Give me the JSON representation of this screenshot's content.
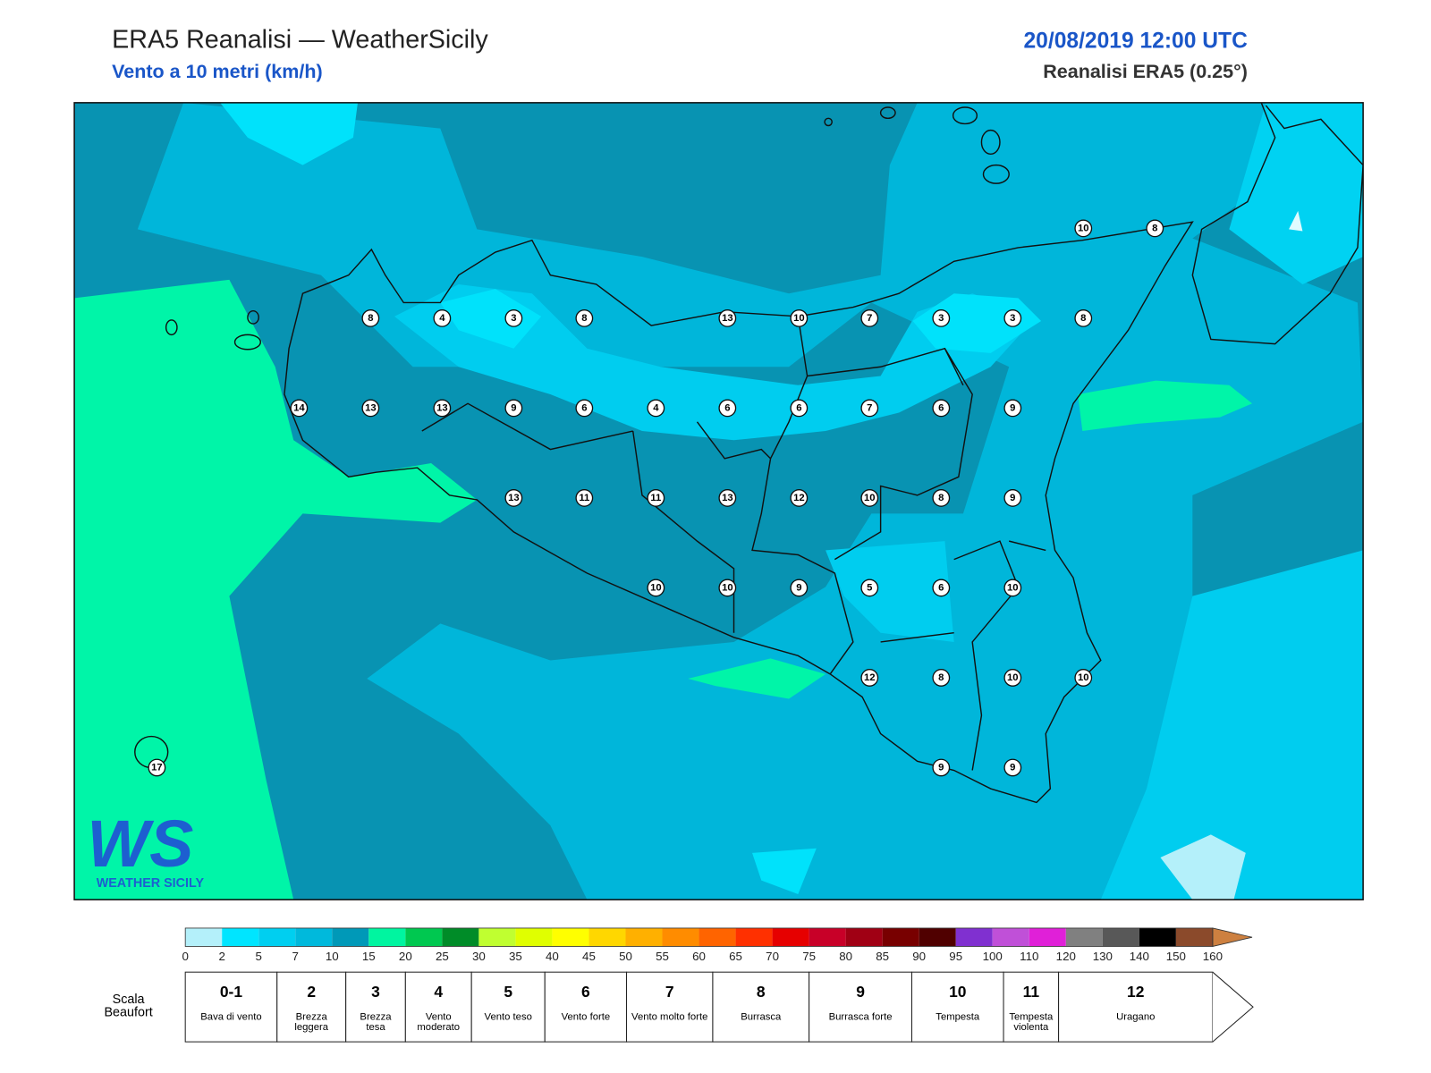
{
  "header": {
    "title": "ERA5 Reanalisi — WeatherSicily",
    "subtitle": "Vento a 10 metri (km/h)",
    "date": "20/08/2019 12:00 UTC",
    "source": "Reanalisi ERA5 (0.25°)"
  },
  "map": {
    "points": [
      10,
      8,
      8,
      4,
      3,
      8,
      13,
      10,
      7,
      3,
      3,
      8,
      14,
      13,
      13,
      9,
      6,
      4,
      6,
      6,
      7,
      6,
      9,
      13,
      11,
      11,
      13,
      12,
      10,
      8,
      9,
      10,
      10,
      9,
      5,
      6,
      10,
      12,
      8,
      10,
      10,
      9,
      9,
      17
    ]
  },
  "logo": {
    "mark": "WS",
    "name": "WEATHER SICILY"
  },
  "colorbar": {
    "ticks": [
      0,
      2,
      5,
      7,
      10,
      15,
      20,
      25,
      30,
      35,
      40,
      45,
      50,
      55,
      60,
      65,
      70,
      75,
      80,
      85,
      90,
      95,
      100,
      110,
      120,
      130,
      140,
      150,
      160
    ],
    "colors": [
      "#b4f0fa",
      "#00e5ff",
      "#00cff0",
      "#00b9dc",
      "#0099b8",
      "#00f5a0",
      "#00c850",
      "#008c28",
      "#c0ff30",
      "#e0ff00",
      "#ffff00",
      "#ffd700",
      "#ffb000",
      "#ff8c00",
      "#ff6400",
      "#ff3000",
      "#e60000",
      "#c80028",
      "#a00014",
      "#780000",
      "#500000",
      "#8030d0",
      "#c050d8",
      "#e020d8",
      "#808080",
      "#585858",
      "#000000",
      "#8b4a2b"
    ],
    "extend_color": "#cd8040"
  },
  "beaufort": {
    "label": "Scala Beaufort",
    "classes": [
      {
        "force": "0-1",
        "name": "Bava di vento"
      },
      {
        "force": "2",
        "name": "Brezza leggera"
      },
      {
        "force": "3",
        "name": "Brezza tesa"
      },
      {
        "force": "4",
        "name": "Vento moderato"
      },
      {
        "force": "5",
        "name": "Vento teso"
      },
      {
        "force": "6",
        "name": "Vento forte"
      },
      {
        "force": "7",
        "name": "Vento molto forte"
      },
      {
        "force": "8",
        "name": "Burrasca"
      },
      {
        "force": "9",
        "name": "Burrasca forte"
      },
      {
        "force": "10",
        "name": "Tempesta"
      },
      {
        "force": "11",
        "name": "Tempesta violenta"
      },
      {
        "force": "12",
        "name": "Uragano"
      }
    ]
  }
}
